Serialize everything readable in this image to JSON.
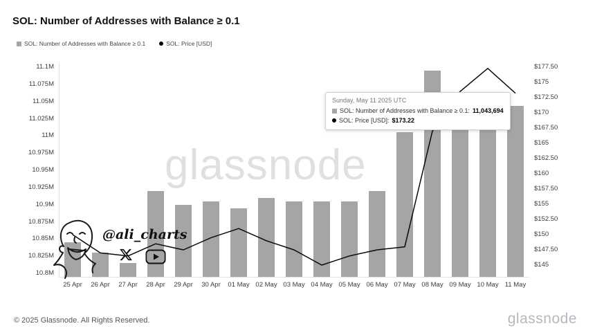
{
  "title": "SOL: Number of Addresses with Balance ≥ 0.1",
  "legend": [
    {
      "marker": "square",
      "color": "#a5a5a5",
      "label": "SOL: Number of Addresses with Balance ≥ 0.1"
    },
    {
      "marker": "circle",
      "color": "#000000",
      "label": "SOL: Price [USD]"
    }
  ],
  "watermark": {
    "text": "glassnode"
  },
  "annotation": {
    "handle": "@ali_charts",
    "icons": [
      "x-logo-icon",
      "youtube-icon"
    ]
  },
  "tooltip": {
    "date": "Sunday, May 11 2025 UTC",
    "rows": [
      {
        "bullet": "square",
        "label": "SOL: Number of Addresses with Balance ≥ 0.1:",
        "value": "11,043,694"
      },
      {
        "bullet": "circle",
        "label": "SOL: Price [USD]:",
        "value": "$173.22"
      }
    ]
  },
  "footer": {
    "copyright": "© 2025 Glassnode. All Rights Reserved.",
    "brand": "glassnode"
  },
  "colors": {
    "bar": "#a5a5a5",
    "line": "#0a0a0a",
    "axis": "#e3e3e3"
  },
  "chart_data": {
    "type": "bar",
    "subtype": "bar+line dual axis",
    "title": "SOL: Number of Addresses with Balance ≥ 0.1",
    "categories": [
      "25 Apr",
      "26 Apr",
      "27 Apr",
      "28 Apr",
      "29 Apr",
      "30 Apr",
      "01 May",
      "02 May",
      "03 May",
      "04 May",
      "05 May",
      "06 May",
      "07 May",
      "08 May",
      "09 May",
      "10 May",
      "11 May"
    ],
    "series": [
      {
        "name": "SOL: Number of Addresses with Balance ≥ 0.1",
        "type": "bar",
        "axis": "left",
        "unit": "M addresses",
        "values": [
          10.845,
          10.83,
          10.815,
          10.92,
          10.9,
          10.905,
          10.895,
          10.91,
          10.905,
          10.905,
          10.905,
          10.92,
          11.005,
          11.095,
          11.03,
          11.04,
          11.0437
        ]
      },
      {
        "name": "SOL: Price [USD]",
        "type": "line",
        "axis": "right",
        "unit": "USD",
        "values": [
          150,
          147,
          146.5,
          148.5,
          147.5,
          149.5,
          151,
          149,
          147.5,
          145,
          146.5,
          147.5,
          148,
          167,
          173.5,
          177.3,
          173.22
        ]
      }
    ],
    "left_axis": {
      "min": 10.8,
      "max": 11.1,
      "ticks": [
        "11.1M",
        "11.075M",
        "11.05M",
        "11.025M",
        "11M",
        "10.975M",
        "10.95M",
        "10.925M",
        "10.9M",
        "10.875M",
        "10.85M",
        "10.825M",
        "10.8M"
      ]
    },
    "right_axis": {
      "min": 145,
      "max": 177.5,
      "ticks": [
        "$177.50",
        "$175",
        "$172.50",
        "$170",
        "$167.50",
        "$165",
        "$162.50",
        "$160",
        "$157.50",
        "$155",
        "$152.50",
        "$150",
        "$147.50",
        "$145"
      ]
    },
    "grid": false,
    "legend_position": "top-left",
    "highlight": {
      "date": "11 May",
      "addresses": 11043694,
      "price_usd": 173.22
    }
  }
}
